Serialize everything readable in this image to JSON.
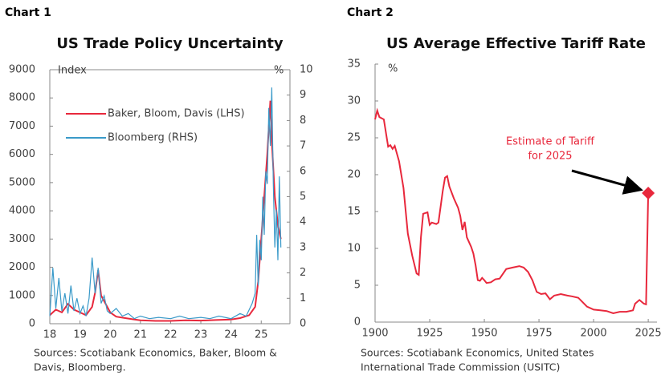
{
  "chart_data": [
    {
      "type": "line",
      "header": "Chart 1",
      "title": "US Trade Policy Uncertainty",
      "ylabel": "Index",
      "y2label": "%",
      "xlim": [
        18,
        25.95
      ],
      "xticks": [
        18,
        19,
        20,
        21,
        22,
        23,
        24,
        25
      ],
      "ylim": [
        0,
        9000
      ],
      "yticks": [
        0,
        1000,
        2000,
        3000,
        4000,
        5000,
        6000,
        7000,
        8000,
        9000
      ],
      "y2lim": [
        0,
        10
      ],
      "y2ticks": [
        0,
        1,
        2,
        3,
        4,
        5,
        6,
        7,
        8,
        9,
        10
      ],
      "legend": "upper-left",
      "series": [
        {
          "name": "Baker, Bloom, Davis (LHS)",
          "color": "#e8283c",
          "x": [
            18.0,
            18.2,
            18.4,
            18.6,
            18.8,
            19.0,
            19.2,
            19.4,
            19.5,
            19.6,
            19.7,
            19.9,
            20.0,
            20.2,
            20.5,
            20.8,
            21.0,
            21.5,
            22.0,
            22.5,
            23.0,
            23.5,
            24.0,
            24.3,
            24.6,
            24.8,
            24.9,
            25.0,
            25.1,
            25.2,
            25.3,
            25.35,
            25.45,
            25.55,
            25.65
          ],
          "values": [
            300,
            500,
            400,
            700,
            500,
            400,
            300,
            600,
            1100,
            1900,
            1000,
            600,
            400,
            250,
            200,
            150,
            120,
            100,
            100,
            120,
            110,
            130,
            150,
            200,
            300,
            600,
            1500,
            3000,
            4500,
            6000,
            7900,
            6500,
            4500,
            3500,
            3000
          ]
        },
        {
          "name": "Bloomberg (RHS)",
          "color": "#3a9ac9",
          "axis": "y2",
          "x": [
            18.0,
            18.1,
            18.2,
            18.3,
            18.4,
            18.5,
            18.6,
            18.7,
            18.8,
            18.9,
            19.0,
            19.1,
            19.2,
            19.3,
            19.4,
            19.5,
            19.6,
            19.7,
            19.8,
            19.9,
            20.0,
            20.2,
            20.4,
            20.6,
            20.8,
            21.0,
            21.3,
            21.6,
            22.0,
            22.3,
            22.6,
            23.0,
            23.3,
            23.6,
            24.0,
            24.3,
            24.5,
            24.7,
            24.8,
            24.85,
            24.9,
            24.95,
            25.0,
            25.05,
            25.1,
            25.15,
            25.2,
            25.25,
            25.3,
            25.35,
            25.4,
            25.45,
            25.5,
            25.55,
            25.6,
            25.65
          ],
          "values": [
            0.3,
            2.2,
            0.6,
            1.8,
            0.5,
            1.2,
            0.4,
            1.5,
            0.5,
            1.0,
            0.4,
            0.7,
            0.3,
            1.0,
            2.6,
            1.2,
            2.2,
            0.8,
            1.1,
            0.5,
            0.4,
            0.6,
            0.3,
            0.4,
            0.2,
            0.3,
            0.2,
            0.25,
            0.2,
            0.3,
            0.2,
            0.25,
            0.2,
            0.3,
            0.2,
            0.4,
            0.3,
            0.8,
            1.2,
            3.5,
            1.5,
            3.3,
            2.5,
            5.0,
            3.5,
            6.0,
            5.5,
            8.5,
            7.0,
            9.3,
            5.5,
            3.0,
            4.5,
            2.5,
            5.8,
            3.0
          ]
        }
      ],
      "source": [
        "Sources: Scotiabank Economics, Baker, Bloom &",
        "Davis, Bloomberg."
      ]
    },
    {
      "type": "line",
      "header": "Chart 2",
      "title": "US Average Effective Tariff Rate",
      "ylabel": "%",
      "xlim": [
        1900,
        2029
      ],
      "xticks": [
        1900,
        1925,
        1950,
        1975,
        2000,
        2025
      ],
      "ylim": [
        0,
        35
      ],
      "yticks": [
        0,
        5,
        10,
        15,
        20,
        25,
        30,
        35
      ],
      "series": [
        {
          "color": "#e8283c",
          "x": [
            1900,
            1901,
            1902,
            1904,
            1906,
            1907,
            1908,
            1909,
            1911,
            1913,
            1915,
            1917,
            1919,
            1920,
            1921,
            1922,
            1924,
            1925,
            1926,
            1928,
            1929,
            1931,
            1932,
            1933,
            1934,
            1936,
            1938,
            1939,
            1940,
            1941,
            1942,
            1944,
            1945,
            1946,
            1947,
            1948,
            1949,
            1950,
            1951,
            1953,
            1955,
            1957,
            1960,
            1963,
            1966,
            1968,
            1970,
            1972,
            1974,
            1976,
            1978,
            1980,
            1982,
            1985,
            1988,
            1990,
            1993,
            1995,
            1997,
            2000,
            2003,
            2006,
            2009,
            2012,
            2015,
            2018,
            2019,
            2021,
            2023,
            2024,
            2025
          ],
          "values": [
            27.5,
            28.7,
            27.8,
            27.5,
            23.8,
            24,
            23.5,
            23.9,
            21.8,
            18.2,
            12,
            9,
            6.6,
            6.4,
            11.5,
            14.7,
            14.9,
            13.2,
            13.5,
            13.3,
            13.5,
            17.8,
            19.6,
            19.8,
            18.4,
            16.8,
            15.5,
            14.4,
            12.5,
            13.6,
            11.5,
            10.2,
            9.3,
            7.7,
            5.7,
            5.6,
            6,
            5.7,
            5.3,
            5.4,
            5.8,
            5.9,
            7.2,
            7.4,
            7.6,
            7.4,
            6.8,
            5.7,
            4.1,
            3.8,
            3.9,
            3.1,
            3.6,
            3.8,
            3.6,
            3.5,
            3.3,
            2.7,
            2.1,
            1.7,
            1.6,
            1.5,
            1.2,
            1.4,
            1.4,
            1.6,
            2.5,
            3,
            2.5,
            2.4,
            17.5
          ]
        }
      ],
      "estimate": {
        "x": 2025,
        "value": 17.5,
        "color": "#e8283c",
        "label": [
          "Estimate of Tariff",
          "for 2025"
        ]
      },
      "source": [
        "Sources: Scotiabank Economics, United States",
        "International Trade Commission (USITC)"
      ]
    }
  ]
}
